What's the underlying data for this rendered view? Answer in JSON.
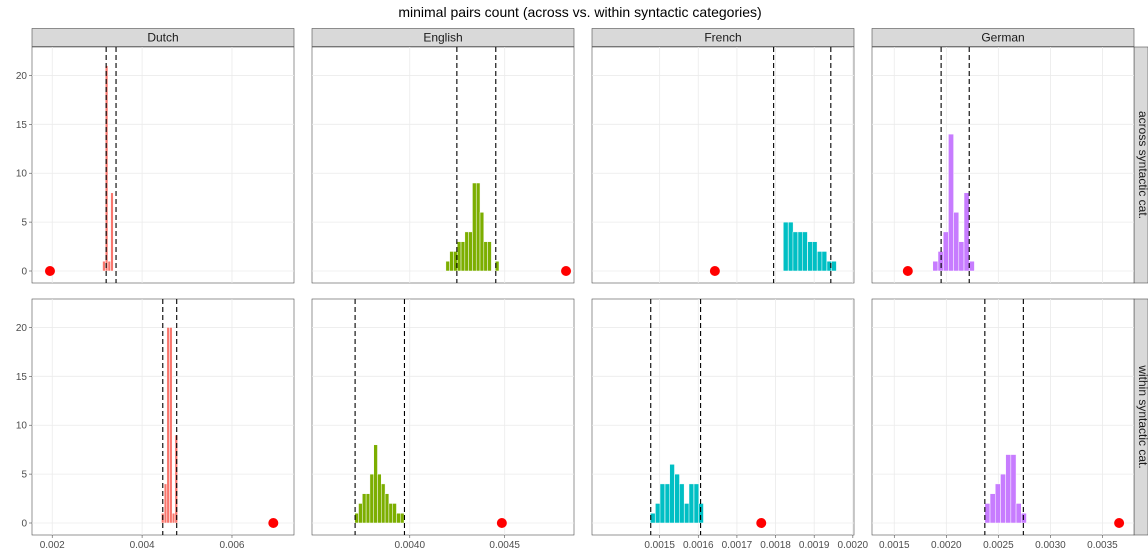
{
  "chart_data": {
    "type": "histogram",
    "title": "minimal pairs count (across vs. within syntactic categories)",
    "xlabel": "",
    "ylabel": "",
    "columns": [
      "Dutch",
      "English",
      "French",
      "German"
    ],
    "rows": [
      "across syntactic cat.",
      "within syntactic cat."
    ],
    "colors": {
      "Dutch": "#F8766D",
      "English": "#7CAE00",
      "French": "#00BFC4",
      "German": "#C77CFF",
      "point": "#FF0000"
    },
    "ylim": [
      0,
      22.5
    ],
    "yticks": [
      0,
      5,
      10,
      15,
      20
    ],
    "grid": true,
    "background": "white",
    "x_axes": {
      "Dutch": {
        "xlim": [
          0.00155,
          0.00738
        ],
        "ticks": [
          0.002,
          0.004,
          0.006
        ],
        "tick_labels": [
          "0.002",
          "0.004",
          "0.006"
        ]
      },
      "English": {
        "xlim": [
          0.003485,
          0.004865
        ],
        "ticks": [
          0.004,
          0.0045
        ],
        "tick_labels": [
          "0.0040",
          "0.0045"
        ]
      },
      "French": {
        "xlim": [
          0.001325,
          0.002003
        ],
        "ticks": [
          0.0015,
          0.0016,
          0.0017,
          0.0018,
          0.0019,
          0.002
        ],
        "tick_labels": [
          "0.0015",
          "0.0016",
          "0.0017",
          "0.0018",
          "0.0019",
          "0.0020"
        ]
      },
      "German": {
        "xlim": [
          0.001286,
          0.003803
        ],
        "ticks": [
          0.0015,
          0.002,
          0.0025,
          0.003,
          0.0035
        ],
        "tick_labels": [
          "0.0015",
          "0.0020",
          "0.0025",
          "0.0030",
          "0.0035"
        ]
      }
    },
    "panels": [
      {
        "column": "Dutch",
        "row": "across syntactic cat.",
        "bin_width": 6e-05,
        "bins": [
          [
            0.00312,
            1
          ],
          [
            0.00318,
            21
          ],
          [
            0.00324,
            1
          ],
          [
            0.0033,
            8
          ],
          [
            0.00336,
            0
          ]
        ],
        "ci": [
          0.0032,
          0.00342
        ],
        "point": 0.00195
      },
      {
        "column": "English",
        "row": "across syntactic cat.",
        "bin_width": 2e-05,
        "bins": [
          [
            0.00419,
            1
          ],
          [
            0.00421,
            2
          ],
          [
            0.00423,
            2
          ],
          [
            0.00425,
            3
          ],
          [
            0.00427,
            3
          ],
          [
            0.00429,
            4
          ],
          [
            0.00431,
            4
          ],
          [
            0.00433,
            9
          ],
          [
            0.00435,
            9
          ],
          [
            0.00437,
            6
          ],
          [
            0.00439,
            3
          ],
          [
            0.00441,
            3
          ],
          [
            0.00443,
            0
          ],
          [
            0.00445,
            1
          ]
        ],
        "ci": [
          0.004248,
          0.004453
        ],
        "point": 0.004823
      },
      {
        "column": "French",
        "row": "across syntactic cat.",
        "bin_width": 1.25e-05,
        "bins": [
          [
            0.00182,
            5
          ],
          [
            0.001833,
            5
          ],
          [
            0.001845,
            4
          ],
          [
            0.001858,
            4
          ],
          [
            0.00187,
            4
          ],
          [
            0.001883,
            3
          ],
          [
            0.001895,
            3
          ],
          [
            0.001908,
            2
          ],
          [
            0.00192,
            2
          ],
          [
            0.001933,
            1
          ],
          [
            0.001945,
            1
          ]
        ],
        "ci": [
          0.001795,
          0.001943
        ],
        "point": 0.001643
      },
      {
        "column": "German",
        "row": "across syntactic cat.",
        "bin_width": 5e-05,
        "bins": [
          [
            0.00187,
            1
          ],
          [
            0.00192,
            2
          ],
          [
            0.00197,
            4
          ],
          [
            0.00202,
            14
          ],
          [
            0.00207,
            6
          ],
          [
            0.00212,
            3
          ],
          [
            0.00217,
            8
          ],
          [
            0.00222,
            1
          ]
        ],
        "ci": [
          0.00195,
          0.00222
        ],
        "point": 0.00163
      },
      {
        "column": "Dutch",
        "row": "within syntactic cat.",
        "bin_width": 6e-05,
        "bins": [
          [
            0.00443,
            1
          ],
          [
            0.00449,
            4
          ],
          [
            0.00455,
            20
          ],
          [
            0.00461,
            20
          ],
          [
            0.00467,
            1
          ],
          [
            0.00473,
            9
          ]
        ],
        "ci": [
          0.00446,
          0.00477
        ],
        "point": 0.00692
      },
      {
        "column": "English",
        "row": "within syntactic cat.",
        "bin_width": 2e-05,
        "bins": [
          [
            0.00371,
            1
          ],
          [
            0.00373,
            2
          ],
          [
            0.00375,
            3
          ],
          [
            0.00377,
            3
          ],
          [
            0.00379,
            5
          ],
          [
            0.00381,
            8
          ],
          [
            0.00383,
            5
          ],
          [
            0.00385,
            4
          ],
          [
            0.00387,
            3
          ],
          [
            0.00389,
            2
          ],
          [
            0.00391,
            2
          ],
          [
            0.00393,
            1
          ],
          [
            0.00395,
            1
          ]
        ],
        "ci": [
          0.003712,
          0.003972
        ],
        "point": 0.004485
      },
      {
        "column": "French",
        "row": "within syntactic cat.",
        "bin_width": 1.25e-05,
        "bins": [
          [
            0.001476,
            1
          ],
          [
            0.001489,
            2
          ],
          [
            0.001501,
            4
          ],
          [
            0.001514,
            4
          ],
          [
            0.001526,
            6
          ],
          [
            0.001539,
            5
          ],
          [
            0.001551,
            4
          ],
          [
            0.001564,
            2
          ],
          [
            0.001576,
            4
          ],
          [
            0.001589,
            4
          ],
          [
            0.001601,
            2
          ]
        ],
        "ci": [
          0.001477,
          0.001606
        ],
        "point": 0.001763
      },
      {
        "column": "German",
        "row": "within syntactic cat.",
        "bin_width": 5e-05,
        "bins": [
          [
            0.00237,
            2
          ],
          [
            0.00242,
            3
          ],
          [
            0.00247,
            4
          ],
          [
            0.00252,
            5
          ],
          [
            0.00257,
            7
          ],
          [
            0.00262,
            7
          ],
          [
            0.00267,
            2
          ],
          [
            0.00272,
            1
          ]
        ],
        "ci": [
          0.00237,
          0.00274
        ],
        "point": 0.00366
      }
    ]
  }
}
